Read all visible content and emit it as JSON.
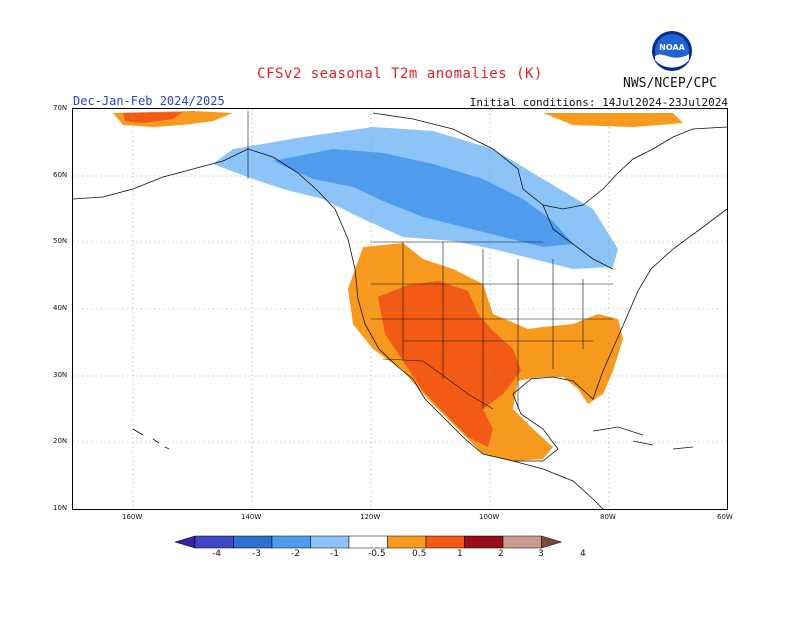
{
  "header": {
    "title": "CFSv2 seasonal T2m anomalies (K)",
    "organization": "NWS/NCEP/CPC",
    "season": "Dec-Jan-Feb 2024/2025",
    "initial_conditions": "Initial conditions: 14Jul2024-23Jul2024",
    "logo_text": "NOAA"
  },
  "map": {
    "lat_labels": [
      "70N",
      "60N",
      "50N",
      "40N",
      "30N",
      "20N",
      "10N"
    ],
    "lon_labels": [
      "160W",
      "140W",
      "120W",
      "100W",
      "80W",
      "60W"
    ],
    "extent": {
      "lon_min": -170,
      "lon_max": -60,
      "lat_min": 10,
      "lat_max": 70
    },
    "regions": [
      {
        "label": "cold-anomaly-canada-core",
        "level": -1.0
      },
      {
        "label": "cold-anomaly-canada-fringe",
        "level": -0.5
      },
      {
        "label": "warm-anomaly-us-west-southeast",
        "level": 0.5
      },
      {
        "label": "warm-anomaly-southwest-mexico",
        "level": 1.0
      },
      {
        "label": "warm-anomaly-arctic-coast",
        "level": 0.5
      }
    ]
  },
  "colorbar": {
    "labels": [
      "-4",
      "-3",
      "-2",
      "-1",
      "-0.5",
      "0.5",
      "1",
      "2",
      "3",
      "4"
    ],
    "colors": [
      "#3b1fa8",
      "#3f46c8",
      "#2e6fd6",
      "#4f9cef",
      "#8cc4f7",
      "#ffffff",
      "#f89a1d",
      "#f25a16",
      "#9c0b1a",
      "#c99a8e",
      "#7a4a3e"
    ]
  }
}
